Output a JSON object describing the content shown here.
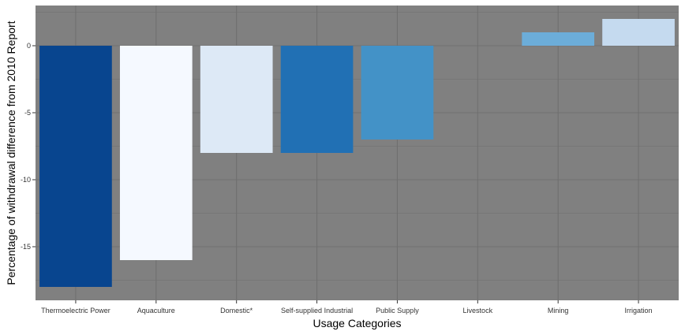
{
  "chart_data": {
    "type": "bar",
    "xlabel": "Usage Categories",
    "ylabel": "Percentage of withdrawal difference from 2010 Report",
    "categories": [
      "Thermoelectric Power",
      "Aquaculture",
      "Domestic*",
      "Self-supplied Industrial",
      "Public Supply",
      "Livestock",
      "Mining",
      "Irrigation"
    ],
    "values": [
      -18,
      -16,
      -8,
      -8,
      -7,
      0,
      1,
      2
    ],
    "bar_colors": [
      "#08458f",
      "#f5f9ff",
      "#dde9f6",
      "#2170b4",
      "#4392c7",
      "#808080",
      "#6cadd9",
      "#c5daef"
    ],
    "ylim": [
      -19,
      3
    ],
    "yticks": [
      0,
      -5,
      -10,
      -15
    ],
    "ytick_labels": [
      "0",
      "-5",
      "-10",
      "-15"
    ],
    "grid": true,
    "legend": "none",
    "panel_background": "#808080",
    "grid_color": "#6f6f6f"
  }
}
